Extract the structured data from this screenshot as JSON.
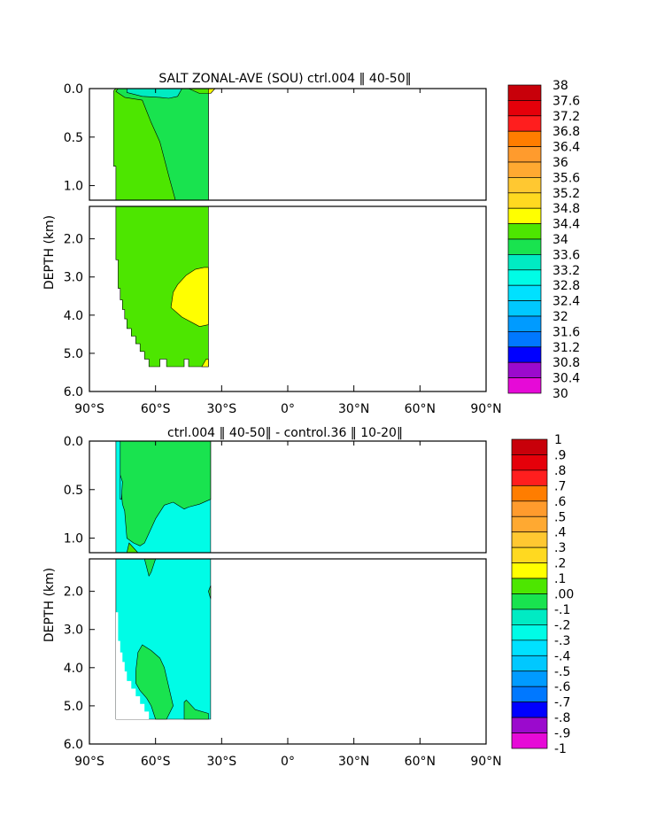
{
  "chart_data": [
    {
      "type": "heatmap",
      "title": "SALT ZONAL-AVE (SOU) ctrl.004 ‖ 40-50‖",
      "ylabel": "DEPTH (km)",
      "x_ticks": [
        {
          "v": -90,
          "label": "90°S"
        },
        {
          "v": -60,
          "label": "60°S"
        },
        {
          "v": -30,
          "label": "30°S"
        },
        {
          "v": 0,
          "label": "0°"
        },
        {
          "v": 30,
          "label": "30°N"
        },
        {
          "v": 60,
          "label": "60°N"
        },
        {
          "v": 90,
          "label": "90°N"
        }
      ],
      "y_ticks_upper": [
        {
          "v": 0,
          "label": "0.0"
        },
        {
          "v": 0.5,
          "label": "0.5"
        },
        {
          "v": 1.0,
          "label": "1.0"
        }
      ],
      "y_ticks_lower": [
        {
          "v": 2,
          "label": "2.0"
        },
        {
          "v": 3,
          "label": "3.0"
        },
        {
          "v": 4,
          "label": "4.0"
        },
        {
          "v": 5,
          "label": "5.0"
        },
        {
          "v": 6,
          "label": "6.0"
        }
      ],
      "xlim": [
        -90,
        90
      ],
      "ylim_upper": [
        0,
        1.15
      ],
      "ylim_lower": [
        1.15,
        6.0
      ],
      "colorbar_labels": [
        "38",
        "37.6",
        "37.2",
        "36.8",
        "36.4",
        "36",
        "35.6",
        "35.2",
        "34.8",
        "34.4",
        "34",
        "33.6",
        "33.2",
        "32.8",
        "32.4",
        "32",
        "31.6",
        "31.2",
        "30.8",
        "30.4",
        "30"
      ],
      "regions": [
        {
          "panel": "upper",
          "color": "#4de600",
          "pts": [
            [
              -78,
              0
            ],
            [
              -36,
              0
            ],
            [
              -36,
              1.15
            ],
            [
              -78,
              1.15
            ],
            [
              -78,
              0.8
            ],
            [
              -79,
              0.8
            ],
            [
              -79,
              0.02
            ]
          ]
        },
        {
          "panel": "upper",
          "color": "#19e34f",
          "pts": [
            [
              -78,
              0.03
            ],
            [
              -74,
              0.09
            ],
            [
              -66,
              0.12
            ],
            [
              -62,
              0.35
            ],
            [
              -58,
              0.55
            ],
            [
              -54,
              0.9
            ],
            [
              -51,
              1.15
            ],
            [
              -36,
              1.15
            ],
            [
              -36,
              0.05
            ],
            [
              -40,
              0.05
            ],
            [
              -45,
              0.0
            ],
            [
              -77,
              0.0
            ]
          ]
        },
        {
          "panel": "upper",
          "color": "#00ebc3",
          "pts": [
            [
              -73,
              0
            ],
            [
              -48,
              0
            ],
            [
              -50,
              0.08
            ],
            [
              -54,
              0.1
            ],
            [
              -58,
              0.09
            ],
            [
              -66,
              0.08
            ],
            [
              -73,
              0.04
            ]
          ]
        },
        {
          "panel": "upper",
          "color": "#ffff00",
          "pts": [
            [
              -36,
              0
            ],
            [
              -33,
              0
            ],
            [
              -35,
              0.05
            ],
            [
              -36,
              0.05
            ]
          ]
        },
        {
          "panel": "lower",
          "color": "#4de600",
          "pts": [
            [
              -78,
              1.15
            ],
            [
              -36,
              1.15
            ],
            [
              -36,
              5.35
            ],
            [
              -45,
              5.35
            ],
            [
              -45,
              5.15
            ],
            [
              -47,
              5.15
            ],
            [
              -47,
              5.35
            ],
            [
              -55,
              5.35
            ],
            [
              -55,
              5.15
            ],
            [
              -58,
              5.15
            ],
            [
              -58,
              5.35
            ],
            [
              -63,
              5.35
            ],
            [
              -63,
              5.15
            ],
            [
              -65,
              5.15
            ],
            [
              -65,
              4.95
            ],
            [
              -67,
              4.95
            ],
            [
              -67,
              4.75
            ],
            [
              -69,
              4.75
            ],
            [
              -69,
              4.55
            ],
            [
              -71,
              4.55
            ],
            [
              -71,
              4.35
            ],
            [
              -73,
              4.35
            ],
            [
              -73,
              4.1
            ],
            [
              -74,
              4.1
            ],
            [
              -74,
              3.85
            ],
            [
              -75,
              3.85
            ],
            [
              -75,
              3.6
            ],
            [
              -76,
              3.6
            ],
            [
              -76,
              3.3
            ],
            [
              -77,
              3.3
            ],
            [
              -77,
              2.55
            ],
            [
              -78,
              2.55
            ]
          ]
        },
        {
          "panel": "lower",
          "color": "#ffff00",
          "pts": [
            [
              -36,
              2.75
            ],
            [
              -38,
              2.75
            ],
            [
              -42,
              2.8
            ],
            [
              -46,
              2.95
            ],
            [
              -50,
              3.2
            ],
            [
              -52,
              3.4
            ],
            [
              -53,
              3.8
            ],
            [
              -48,
              4.05
            ],
            [
              -40,
              4.3
            ],
            [
              -36,
              4.25
            ]
          ]
        },
        {
          "panel": "lower",
          "color": "#ffff00",
          "pts": [
            [
              -39,
              5.35
            ],
            [
              -36,
              5.35
            ],
            [
              -36,
              5.15
            ],
            [
              -37,
              5.15
            ]
          ]
        }
      ]
    },
    {
      "type": "heatmap",
      "title": "ctrl.004 ‖ 40-50‖ - control.36 ‖ 10-20‖",
      "ylabel": "DEPTH (km)",
      "x_ticks": [
        {
          "v": -90,
          "label": "90°S"
        },
        {
          "v": -60,
          "label": "60°S"
        },
        {
          "v": -30,
          "label": "30°S"
        },
        {
          "v": 0,
          "label": "0°"
        },
        {
          "v": 30,
          "label": "30°N"
        },
        {
          "v": 60,
          "label": "60°N"
        },
        {
          "v": 90,
          "label": "90°N"
        }
      ],
      "y_ticks_upper": [
        {
          "v": 0,
          "label": "0.0"
        },
        {
          "v": 0.5,
          "label": "0.5"
        },
        {
          "v": 1.0,
          "label": "1.0"
        }
      ],
      "y_ticks_lower": [
        {
          "v": 2,
          "label": "2.0"
        },
        {
          "v": 3,
          "label": "3.0"
        },
        {
          "v": 4,
          "label": "4.0"
        },
        {
          "v": 5,
          "label": "5.0"
        },
        {
          "v": 6,
          "label": "6.0"
        }
      ],
      "xlim": [
        -90,
        90
      ],
      "ylim_upper": [
        0,
        1.15
      ],
      "ylim_lower": [
        1.15,
        6.0
      ],
      "colorbar_labels": [
        "1",
        ".9",
        ".8",
        ".7",
        ".6",
        ".5",
        ".4",
        ".3",
        ".2",
        ".1",
        ".00",
        "-.1",
        "-.2",
        "-.3",
        "-.4",
        "-.5",
        "-.6",
        "-.7",
        "-.8",
        "-.9",
        "-1"
      ],
      "regions": [
        {
          "panel": "upper",
          "color": "#00fce6",
          "pts": [
            [
              -78,
              0
            ],
            [
              -35,
              0
            ],
            [
              -35,
              1.15
            ],
            [
              -78,
              1.15
            ]
          ]
        },
        {
          "panel": "upper",
          "color": "#19e34f",
          "pts": [
            [
              -76,
              0
            ],
            [
              -35,
              0
            ],
            [
              -35,
              0.6
            ],
            [
              -40,
              0.65
            ],
            [
              -45,
              0.68
            ],
            [
              -47,
              0.7
            ],
            [
              -52,
              0.63
            ],
            [
              -56,
              0.66
            ],
            [
              -60,
              0.8
            ],
            [
              -63,
              0.95
            ],
            [
              -65,
              1.05
            ],
            [
              -67,
              1.08
            ],
            [
              -70,
              1.05
            ],
            [
              -73,
              1.0
            ],
            [
              -74,
              0.72
            ],
            [
              -75,
              0.65
            ],
            [
              -76,
              0.4
            ]
          ]
        },
        {
          "panel": "upper",
          "color": "#00fce6",
          "pts": [
            [
              -76,
              0.35
            ],
            [
              -75,
              0.42
            ],
            [
              -75.5,
              0.6
            ],
            [
              -76,
              0.6
            ]
          ]
        },
        {
          "panel": "upper",
          "color": "#4de600",
          "pts": [
            [
              -73,
              1.15
            ],
            [
              -68,
              1.15
            ],
            [
              -70,
              1.1
            ],
            [
              -72,
              1.05
            ]
          ]
        },
        {
          "panel": "lower",
          "color": "#00fce6",
          "pts": [
            [
              -78,
              1.15
            ],
            [
              -35,
              1.15
            ],
            [
              -35,
              5.35
            ],
            [
              -78,
              5.35
            ]
          ]
        },
        {
          "panel": "lower",
          "color": "#ffffff",
          "pts": [
            [
              -78,
              2.55
            ],
            [
              -77,
              2.55
            ],
            [
              -77,
              3.3
            ],
            [
              -76,
              3.3
            ],
            [
              -76,
              3.6
            ],
            [
              -75,
              3.6
            ],
            [
              -75,
              3.85
            ],
            [
              -74,
              3.85
            ],
            [
              -74,
              4.1
            ],
            [
              -73,
              4.1
            ],
            [
              -73,
              4.35
            ],
            [
              -71,
              4.35
            ],
            [
              -71,
              4.55
            ],
            [
              -69,
              4.55
            ],
            [
              -69,
              4.75
            ],
            [
              -67,
              4.75
            ],
            [
              -67,
              4.95
            ],
            [
              -65,
              4.95
            ],
            [
              -65,
              5.15
            ],
            [
              -63,
              5.15
            ],
            [
              -63,
              5.35
            ],
            [
              -78,
              5.35
            ]
          ]
        },
        {
          "panel": "lower",
          "color": "#19e34f",
          "pts": [
            [
              -69,
              4.1
            ],
            [
              -68,
              3.6
            ],
            [
              -66,
              3.4
            ],
            [
              -62,
              3.55
            ],
            [
              -58,
              3.75
            ],
            [
              -56,
              4.0
            ],
            [
              -54,
              4.5
            ],
            [
              -52,
              5.0
            ],
            [
              -55,
              5.35
            ],
            [
              -60,
              5.35
            ],
            [
              -62,
              5.0
            ],
            [
              -64,
              4.8
            ],
            [
              -67,
              4.6
            ],
            [
              -69,
              4.4
            ]
          ]
        },
        {
          "panel": "lower",
          "color": "#19e34f",
          "pts": [
            [
              -47,
              5.35
            ],
            [
              -36,
              5.35
            ],
            [
              -36,
              5.2
            ],
            [
              -42,
              5.1
            ],
            [
              -46,
              4.85
            ],
            [
              -47,
              4.9
            ]
          ]
        },
        {
          "panel": "lower",
          "color": "#19e34f",
          "pts": [
            [
              -35,
              1.85
            ],
            [
              -36,
              2.0
            ],
            [
              -35,
              2.2
            ]
          ]
        },
        {
          "panel": "lower",
          "color": "#19e34f",
          "pts": [
            [
              -65,
              1.15
            ],
            [
              -60,
              1.15
            ],
            [
              -62,
              1.5
            ],
            [
              -63,
              1.6
            ]
          ]
        }
      ]
    }
  ]
}
